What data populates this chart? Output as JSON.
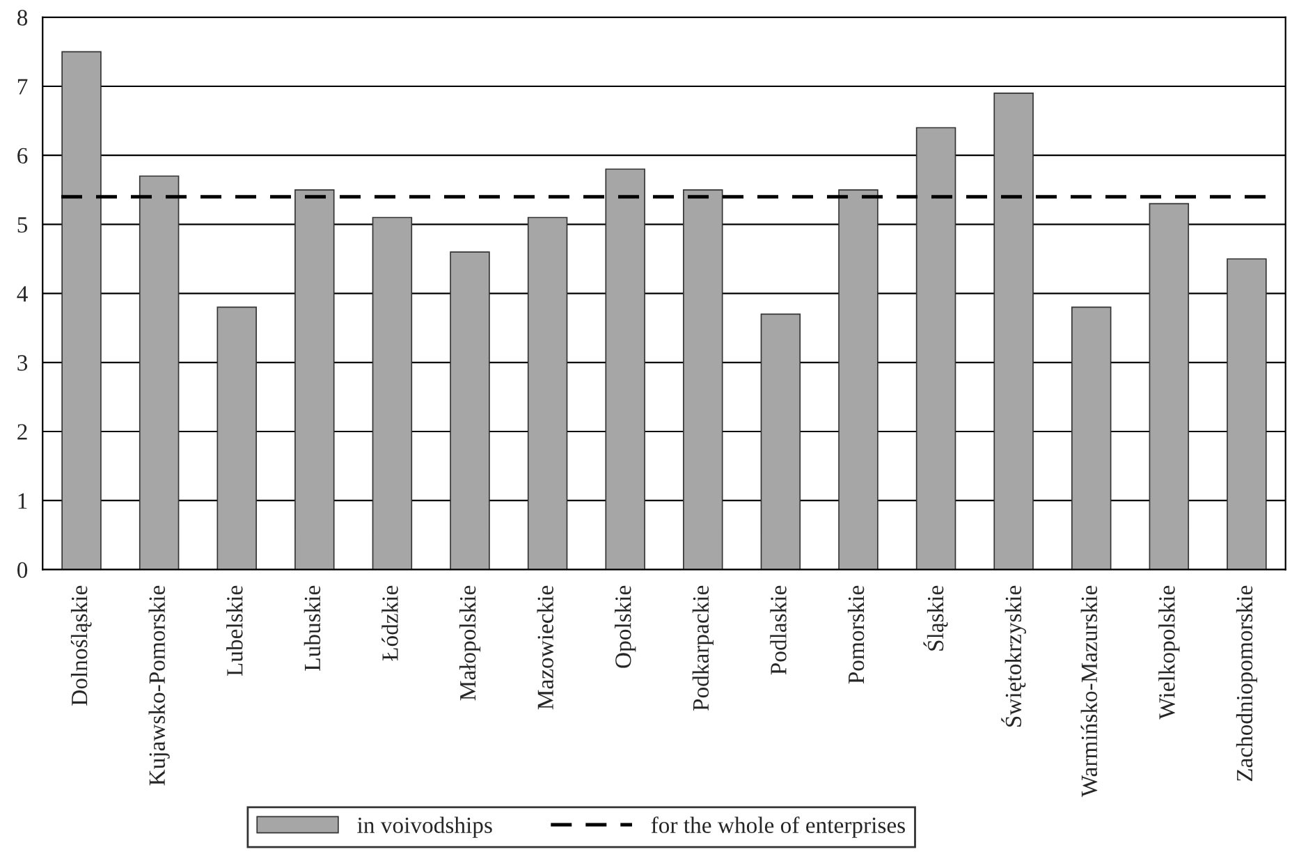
{
  "chart_data": {
    "type": "bar",
    "categories": [
      "Dolnośląskie",
      "Kujawsko-Pomorskie",
      "Lubelskie",
      "Lubuskie",
      "Łódzkie",
      "Małopolskie",
      "Mazowieckie",
      "Opolskie",
      "Podkarpackie",
      "Podlaskie",
      "Pomorskie",
      "Śląskie",
      "Świętokrzyskie",
      "Warmińsko-Mazurskie",
      "Wielkopolskie",
      "Zachodniopomorskie"
    ],
    "series": [
      {
        "name": "in voivodships",
        "color": "#a6a6a6",
        "values": [
          7.5,
          5.7,
          3.8,
          5.5,
          5.1,
          4.6,
          5.1,
          5.8,
          5.5,
          3.7,
          5.5,
          6.4,
          6.9,
          3.8,
          5.3,
          4.5
        ]
      }
    ],
    "ref_lines": [
      {
        "axis": "y",
        "value": 5.4,
        "label": "for the whole of enterprises",
        "color": "#000000",
        "line_style": "dashed"
      }
    ],
    "ylim": [
      0,
      8
    ],
    "yticks": [
      0,
      1,
      2,
      3,
      4,
      5,
      6,
      7,
      8
    ],
    "grid": "y",
    "legend": "bottom"
  }
}
